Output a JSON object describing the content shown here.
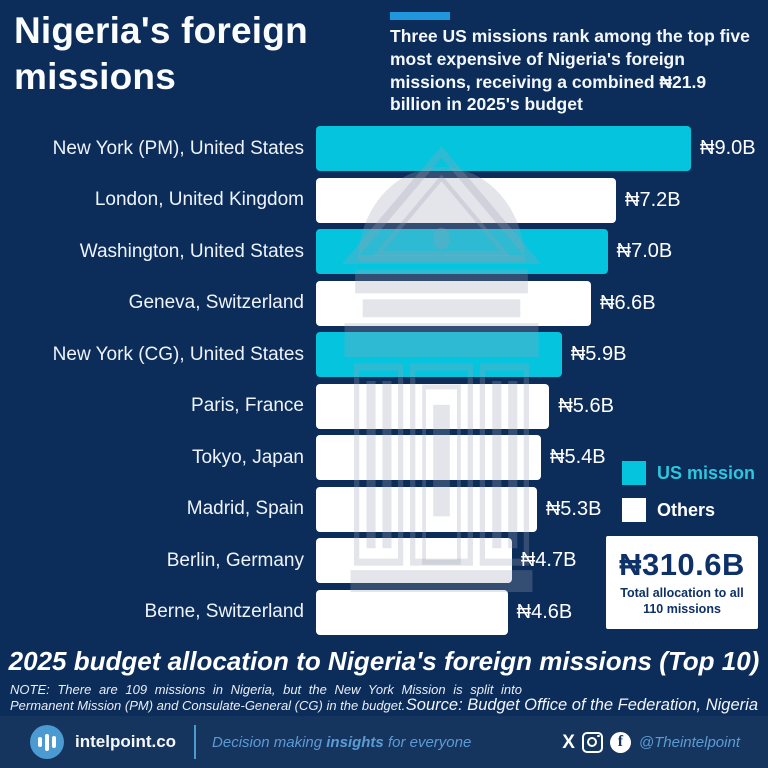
{
  "header": {
    "title": "Nigeria's foreign missions",
    "subtitle": "Three US missions rank among the top five most expensive of Nigeria's foreign missions, receiving a combined ₦21.9 billion in 2025's budget"
  },
  "chart_data": {
    "type": "bar",
    "orientation": "horizontal",
    "title": "2025 budget allocation to Nigeria's foreign missions (Top 10)",
    "categories": [
      "New York (PM), United States",
      "London, United Kingdom",
      "Washington, United States",
      "Geneva, Switzerland",
      "New York (CG), United States",
      "Paris, France",
      "Tokyo, Japan",
      "Madrid, Spain",
      "Berlin, Germany",
      "Berne, Switzerland"
    ],
    "values": [
      9.0,
      7.2,
      7.0,
      6.6,
      5.9,
      5.6,
      5.4,
      5.3,
      4.7,
      4.6
    ],
    "value_labels": [
      "₦9.0B",
      "₦7.2B",
      "₦7.0B",
      "₦6.6B",
      "₦5.9B",
      "₦5.6B",
      "₦5.4B",
      "₦5.3B",
      "₦4.7B",
      "₦4.6B"
    ],
    "us_mission_flags": [
      true,
      false,
      true,
      false,
      true,
      false,
      false,
      false,
      false,
      false
    ],
    "unit": "billion naira (₦B)",
    "xlim": [
      0,
      9.0
    ],
    "legend_position": "right",
    "grid": false
  },
  "legend": {
    "us_label": "US mission",
    "others_label": "Others"
  },
  "total_box": {
    "value": "₦310.6B",
    "caption": "Total allocation to all 110 missions"
  },
  "footnote": {
    "note": "NOTE: There are 109 missions in Nigeria, but the New York Mission is split into Permanent Mission (PM) and Consulate-General (CG) in the budget.",
    "source": "Source: Budget Office of the Federation, Nigeria"
  },
  "footer": {
    "brand": "intelpoint.co",
    "tagline_pre": "Decision making ",
    "tagline_bold": "insights",
    "tagline_post": " for everyone",
    "handle": "@Theintelpoint",
    "facebook_glyph": "f",
    "x_glyph": "X"
  },
  "icons": [
    "bar-chart-logo-icon",
    "x-icon",
    "instagram-icon",
    "facebook-icon"
  ],
  "colors": {
    "background": "#0c2d5a",
    "footer_bg": "#15345e",
    "bar_us": "#04c4de",
    "bar_other": "#ffffff",
    "accent": "#2096dc",
    "legend_us_text": "#2bc7dd",
    "navy_text": "#0e3168",
    "footer_blue": "#5c9bd4",
    "logo_blue": "#4c9ad2",
    "watermark": "rgba(154,162,180,0.28)"
  }
}
